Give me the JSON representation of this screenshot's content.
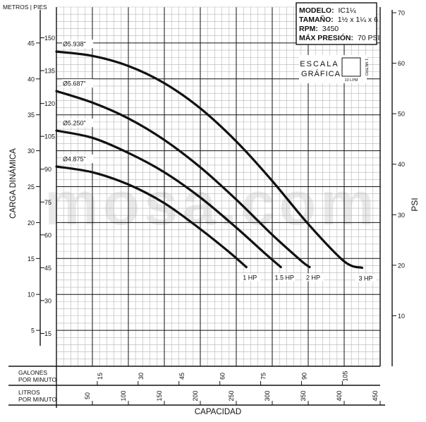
{
  "chart_data": {
    "type": "line",
    "info": {
      "lines": [
        {
          "label": "MODELO:",
          "value": "IC1¼"
        },
        {
          "label": "TAMAÑO:",
          "value": "1½ x 1¼ x 6"
        },
        {
          "label": "RPM:",
          "value": "3450"
        },
        {
          "label": "MÁX PRESIÓN:",
          "value": "70 PSI"
        }
      ]
    },
    "scale_box": {
      "line1": "ESCALA",
      "line2": "GRÁFICA",
      "x_label": "10 LPM",
      "y_label": "1 METRO"
    },
    "watermark": "mosa.com",
    "xlabel": "CAPACIDAD",
    "ylabel": "CARGA DINÁMICA",
    "y2label": "PSI",
    "y_header": "METROS | PIES",
    "gpm_label": "GALONES POR MINUTO",
    "lpm_label": "LITROS POR MINUTO",
    "x_lpm_range": [
      0,
      450
    ],
    "y_meters_range": [
      0,
      50
    ],
    "lpm_ticks": [
      "50",
      "100",
      "150",
      "200",
      "250",
      "300",
      "350",
      "400",
      "450"
    ],
    "gpm_ticks": [
      "15",
      "30",
      "45",
      "60",
      "75",
      "90",
      "105"
    ],
    "meters_ticks": [
      "5",
      "10",
      "15",
      "20",
      "25",
      "30",
      "35",
      "40",
      "45"
    ],
    "feet_ticks": [
      "15",
      "30",
      "45",
      "60",
      "75",
      "90",
      "105",
      "120",
      "135",
      "150"
    ],
    "psi_ticks": [
      "10",
      "20",
      "30",
      "40",
      "50",
      "60",
      "70"
    ],
    "series": [
      {
        "name": "Ø5.938\"",
        "hp": "3 HP",
        "points": [
          [
            0,
            43.8
          ],
          [
            50,
            43.2
          ],
          [
            100,
            41.8
          ],
          [
            150,
            39.4
          ],
          [
            200,
            35.9
          ],
          [
            250,
            31.3
          ],
          [
            300,
            25.8
          ],
          [
            350,
            19.8
          ],
          [
            400,
            14.6
          ],
          [
            425,
            13.7
          ]
        ]
      },
      {
        "name": "Ø5.687\"",
        "hp": "2 HP",
        "points": [
          [
            0,
            38.3
          ],
          [
            50,
            36.7
          ],
          [
            100,
            34.5
          ],
          [
            150,
            31.5
          ],
          [
            200,
            27.7
          ],
          [
            250,
            23.2
          ],
          [
            300,
            18.3
          ],
          [
            340,
            14.7
          ],
          [
            352,
            13.8
          ]
        ]
      },
      {
        "name": "Ø5.250\"",
        "hp": "1.5 HP",
        "points": [
          [
            0,
            32.8
          ],
          [
            50,
            31.8
          ],
          [
            100,
            29.7
          ],
          [
            150,
            27.0
          ],
          [
            200,
            23.5
          ],
          [
            250,
            19.3
          ],
          [
            290,
            15.7
          ],
          [
            312,
            13.8
          ]
        ]
      },
      {
        "name": "Ø4.875\"",
        "hp": "1 HP",
        "points": [
          [
            0,
            27.8
          ],
          [
            50,
            27.0
          ],
          [
            100,
            25.3
          ],
          [
            150,
            22.7
          ],
          [
            200,
            19.1
          ],
          [
            240,
            15.9
          ],
          [
            264,
            13.8
          ]
        ]
      }
    ]
  }
}
